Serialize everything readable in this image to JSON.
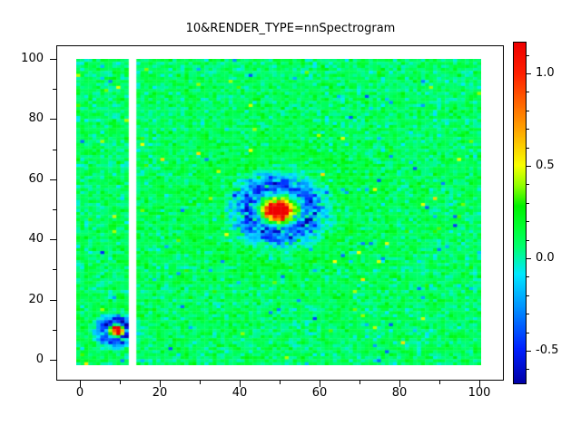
{
  "title": "10&RENDER_TYPE=nnSpectrogram",
  "colors": {
    "background": "#ffffff",
    "frame": "#000000",
    "text": "#000000"
  },
  "x_axis": {
    "range": [
      0,
      100
    ],
    "minor_step": 10,
    "ticks": [
      {
        "v": 0,
        "label": "0"
      },
      {
        "v": 20,
        "label": "20"
      },
      {
        "v": 40,
        "label": "40"
      },
      {
        "v": 60,
        "label": "60"
      },
      {
        "v": 80,
        "label": "80"
      },
      {
        "v": 100,
        "label": "100"
      }
    ]
  },
  "y_axis": {
    "range": [
      0,
      100
    ],
    "minor_step": 10,
    "ticks": [
      {
        "v": 0,
        "label": "0"
      },
      {
        "v": 20,
        "label": "20"
      },
      {
        "v": 40,
        "label": "40"
      },
      {
        "v": 60,
        "label": "60"
      },
      {
        "v": 80,
        "label": "80"
      },
      {
        "v": 100,
        "label": "100"
      }
    ]
  },
  "colorbar": {
    "range": [
      -0.672,
      1.172
    ],
    "minor_step": 0.1,
    "ticks": [
      {
        "v": 1.0,
        "label": "1.0"
      },
      {
        "v": 0.5,
        "label": "0.5"
      },
      {
        "v": 0.0,
        "label": "0.0"
      },
      {
        "v": -0.5,
        "label": "-0.5"
      }
    ]
  },
  "chart_data": {
    "type": "heatmap",
    "title": "10&RENDER_TYPE=nnSpectrogram",
    "xlabel": "",
    "ylabel": "",
    "x_range": [
      0,
      100
    ],
    "y_range": [
      0,
      100
    ],
    "color_range": [
      -0.672,
      1.172
    ],
    "legend": "vertical colorbar at right, ticks -0.5 to 1.0 every 0.5, minors every 0.1",
    "colormap": "jet-like rainbow: navy, blue, cyan, green, yellow, orange, red",
    "colormap_stops": [
      [
        0.0,
        "#0000a8"
      ],
      [
        0.1,
        "#0020ff"
      ],
      [
        0.22,
        "#0090ff"
      ],
      [
        0.32,
        "#00e8ff"
      ],
      [
        0.4,
        "#00ff70"
      ],
      [
        0.46,
        "#00ff30"
      ],
      [
        0.52,
        "#00f200"
      ],
      [
        0.58,
        "#90ff00"
      ],
      [
        0.64,
        "#f8ff00"
      ],
      [
        0.75,
        "#ffa000"
      ],
      [
        0.85,
        "#ff5000"
      ],
      [
        0.91,
        "#ff2000"
      ],
      [
        1.0,
        "#ee0000"
      ]
    ],
    "grid": {
      "cols": 101,
      "rows": 102,
      "y_top": 100,
      "y_bottom": -1
    },
    "background_noise": {
      "mean": 0.09,
      "std": 0.07,
      "outlier_chance": 0.02,
      "outlier_amp": 0.3
    },
    "ring_speckle": 0.3,
    "seed": 20,
    "missing_columns": [
      13,
      14
    ],
    "features": [
      {
        "name": "large-ricker-blob",
        "cx": 50,
        "cy": 50,
        "amplitude": 1.25,
        "sigma": 4.6,
        "halo_amplitude": 0.12,
        "halo_sigma": 15,
        "description": "red/orange core ~1.2 with yellow ring, speckled dark-blue negative annulus (~ -0.55) out to r~12, centered near (50,50)"
      },
      {
        "name": "small-ricker-blob",
        "cx": 9.5,
        "cy": 10,
        "amplitude": 1.35,
        "sigma": 2.0,
        "halo_amplitude": 0.05,
        "halo_sigma": 6,
        "description": "small bright red core with blue annulus out to r~5, centered near (10,10), cut on right by white missing-data stripe"
      }
    ]
  }
}
